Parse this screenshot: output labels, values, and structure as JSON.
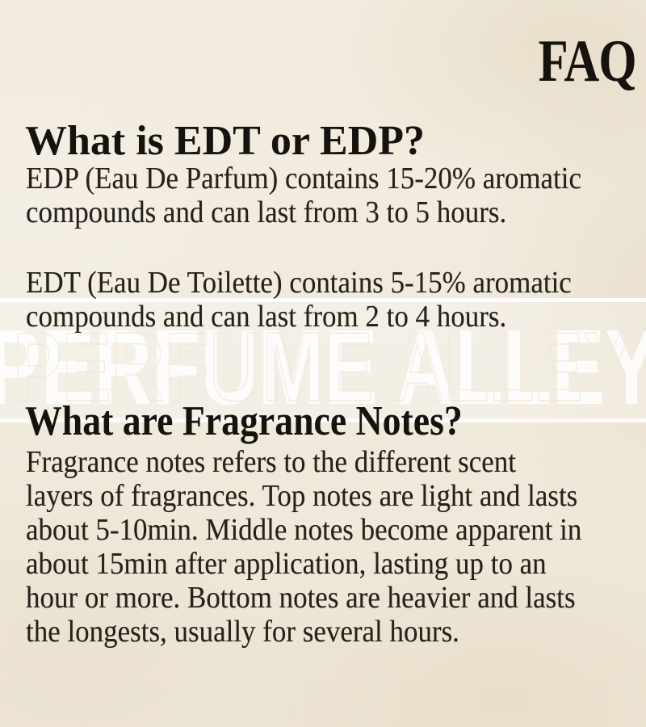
{
  "header": {
    "title": "FAQ"
  },
  "watermark": {
    "text": "PERFUME ALLEY"
  },
  "colors": {
    "background": "#f1eadc",
    "texture_tan": "#ddcfb4",
    "heading_text": "#16130e",
    "body_text": "#26211a",
    "watermark_fill": "#ffffff",
    "band_overlay": "rgba(255,255,255,0.26)"
  },
  "sections": [
    {
      "heading": "What is EDT or EDP?",
      "paragraphs": [
        {
          "lines": [
            "EDP (Eau De Parfum) contains 15-20% aromatic",
            "compounds and can last from 3 to 5 hours."
          ]
        },
        {
          "lines": [
            "EDT (Eau De Toilette) contains 5-15% aromatic",
            "compounds and can last from 2 to 4 hours."
          ]
        }
      ]
    },
    {
      "heading": "What are Fragrance Notes?",
      "paragraphs": [
        {
          "lines": [
            "Fragrance notes refers to the different scent",
            "layers of fragrances. Top notes are light and lasts",
            "about 5-10min. Middle notes become apparent in",
            "about 15min after application, lasting up to an",
            "hour or more. Bottom notes are heavier and lasts",
            "the longests, usually for several hours."
          ]
        }
      ]
    }
  ]
}
